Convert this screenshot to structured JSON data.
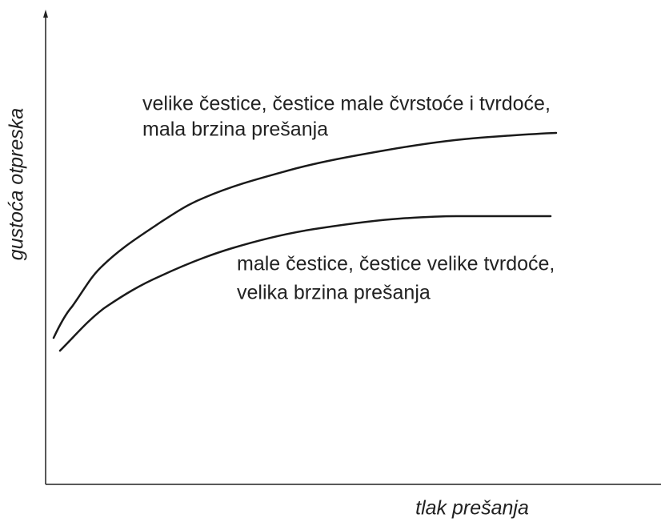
{
  "y_axis_label": "gustoća otpreska",
  "x_axis_label": "tlak prešanja",
  "annotations": [
    {
      "lines": [
        "velike čestice, čestice male čvrstoće i tvrdoće,",
        "mala brzina prešanja"
      ]
    },
    {
      "lines": [
        "male čestice, čestice velike tvrdoće,",
        "velika brzina prešanja"
      ]
    }
  ]
}
